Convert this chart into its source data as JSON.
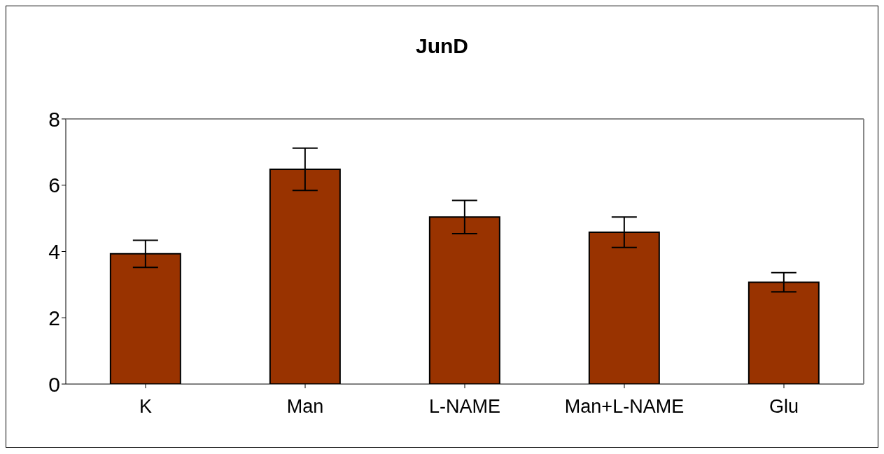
{
  "chart_data": {
    "type": "bar",
    "title": "JunD",
    "categories": [
      "K",
      "Man",
      "L-NAME",
      "Man+L-NAME",
      "Glu"
    ],
    "values": [
      3.93,
      6.48,
      5.04,
      4.58,
      3.07
    ],
    "errors": [
      0.41,
      0.64,
      0.5,
      0.46,
      0.29
    ],
    "color": "#993300",
    "ylim": [
      0,
      8
    ],
    "yticks": [
      0,
      2,
      4,
      6,
      8
    ],
    "grid": false
  }
}
